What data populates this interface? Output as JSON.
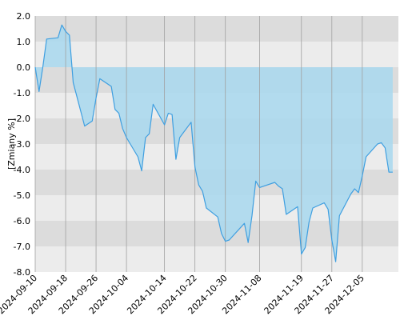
{
  "chart_data": {
    "type": "area",
    "title": "",
    "xlabel": "",
    "ylabel": "[Zmiany %]",
    "ylim": [
      -8.0,
      2.0
    ],
    "y_ticks": [
      "2.0",
      "1.0",
      "0.0",
      "-1.0",
      "-2.0",
      "-3.0",
      "-4.0",
      "-5.0",
      "-6.0",
      "-7.0",
      "-8.0"
    ],
    "x_tick_labels": [
      "2024-09-10",
      "2024-09-18",
      "2024-09-26",
      "2024-10-04",
      "2024-10-14",
      "2024-10-22",
      "2024-10-30",
      "2024-11-08",
      "2024-11-19",
      "2024-11-27",
      "2024-12-05"
    ],
    "grid": true,
    "colors": {
      "line": "#3f9fe0",
      "fill": "#a8d8ee",
      "band_dark": "#dcdcdc",
      "band_light": "#ececec",
      "grid": "#a0a0a0"
    },
    "series": [
      {
        "x": [
          "2024-09-10",
          "2024-09-11",
          "2024-09-12",
          "2024-09-13",
          "2024-09-16",
          "2024-09-17",
          "2024-09-18",
          "2024-09-19",
          "2024-09-20",
          "2024-09-23",
          "2024-09-24",
          "2024-09-25",
          "2024-09-26",
          "2024-09-27",
          "2024-09-30",
          "2024-10-01",
          "2024-10-02",
          "2024-10-03",
          "2024-10-04",
          "2024-10-07",
          "2024-10-08",
          "2024-10-09",
          "2024-10-10",
          "2024-10-11",
          "2024-10-14",
          "2024-10-15",
          "2024-10-16",
          "2024-10-17",
          "2024-10-18",
          "2024-10-21",
          "2024-10-22",
          "2024-10-23",
          "2024-10-24",
          "2024-10-25",
          "2024-10-28",
          "2024-10-29",
          "2024-10-30",
          "2024-10-31",
          "2024-11-04",
          "2024-11-05",
          "2024-11-06",
          "2024-11-07",
          "2024-11-08",
          "2024-11-12",
          "2024-11-13",
          "2024-11-14",
          "2024-11-15",
          "2024-11-18",
          "2024-11-19",
          "2024-11-20",
          "2024-11-21",
          "2024-11-22",
          "2024-11-25",
          "2024-11-26",
          "2024-11-27",
          "2024-11-28",
          "2024-11-29",
          "2024-12-02",
          "2024-12-03",
          "2024-12-04",
          "2024-12-05",
          "2024-12-06",
          "2024-12-09",
          "2024-12-10",
          "2024-12-11",
          "2024-12-12",
          "2024-12-13"
        ],
        "y": [
          0.0,
          -0.95,
          0.0,
          1.1,
          1.15,
          1.65,
          1.4,
          1.25,
          -0.6,
          -2.3,
          -2.2,
          -2.1,
          -1.2,
          -0.45,
          -0.75,
          -1.65,
          -1.8,
          -2.4,
          -2.75,
          -3.5,
          -4.05,
          -2.75,
          -2.6,
          -1.45,
          -2.25,
          -1.8,
          -1.85,
          -3.6,
          -2.75,
          -2.15,
          -3.9,
          -4.6,
          -4.85,
          -5.5,
          -5.85,
          -6.5,
          -6.8,
          -6.75,
          -6.1,
          -6.85,
          -5.8,
          -4.45,
          -4.7,
          -4.5,
          -4.65,
          -4.75,
          -5.75,
          -5.45,
          -7.3,
          -7.05,
          -6.05,
          -5.5,
          -5.3,
          -5.55,
          -6.75,
          -7.6,
          -5.8,
          -4.95,
          -4.75,
          -4.9,
          -4.25,
          -3.5,
          -3.0,
          -2.95,
          -3.15,
          -4.1,
          -4.1
        ]
      }
    ]
  }
}
